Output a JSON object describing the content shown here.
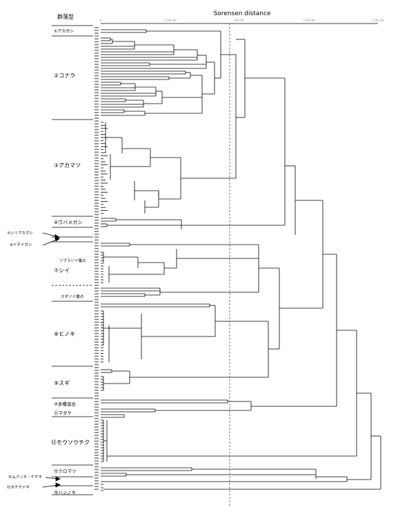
{
  "title": "Sorensen distance",
  "left_header": "群落型",
  "axis_ticks": [
    "0",
    "2.5E+00",
    "5E+00",
    "7.5E+00",
    "1.0E+01"
  ],
  "groups": [
    "①アカガシ",
    "②コナラ",
    "③アカマツ",
    "④ウバメガシ",
    "⑤シリブカガシ",
    "⑥イチイガシ",
    "⑦シイ",
    "⑧ヒノキ",
    "⑨スギ",
    "⑩多種混合",
    "⑪マダケ",
    "⑫モウソウチク",
    "⑬クロマツ",
    "⑭ムクノキ・ケヤキ",
    "⑮タチヤナギ",
    "⑯ハンノキ"
  ],
  "sub_labels": [
    "ツブラジイ優占",
    "スダジイ優占"
  ],
  "colors": {
    "line": "#000000",
    "cut_line": "#555555",
    "leaf_text": "#888888"
  }
}
